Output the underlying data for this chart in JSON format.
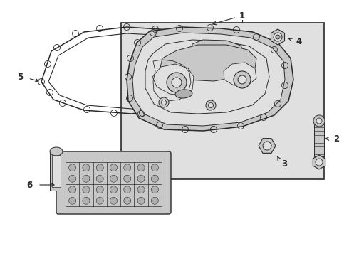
{
  "bg": "#ffffff",
  "lc": "#2a2a2a",
  "gray_light": "#e0e0e0",
  "gray_med": "#c8c8c8",
  "gray_dark": "#b0b0b0",
  "fig_w": 4.9,
  "fig_h": 3.6,
  "dpi": 100
}
